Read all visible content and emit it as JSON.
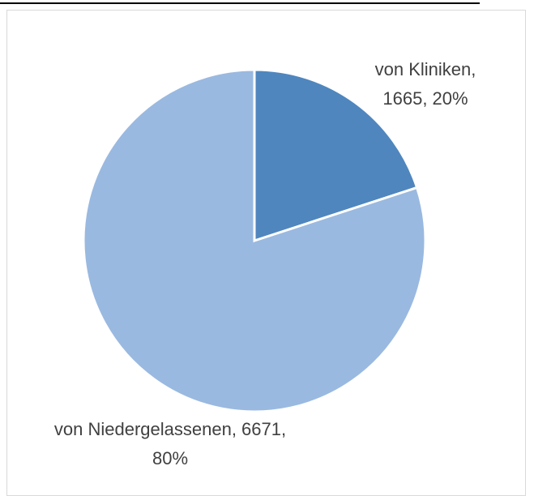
{
  "chart_data": {
    "type": "pie",
    "values": [
      1665,
      6671
    ],
    "value_labels": [
      "von Kliniken, 1665, 20%",
      "von Niedergelassenen, 6671, 80%"
    ],
    "colors": [
      "#4f86be",
      "#9ab9e0"
    ]
  }
}
